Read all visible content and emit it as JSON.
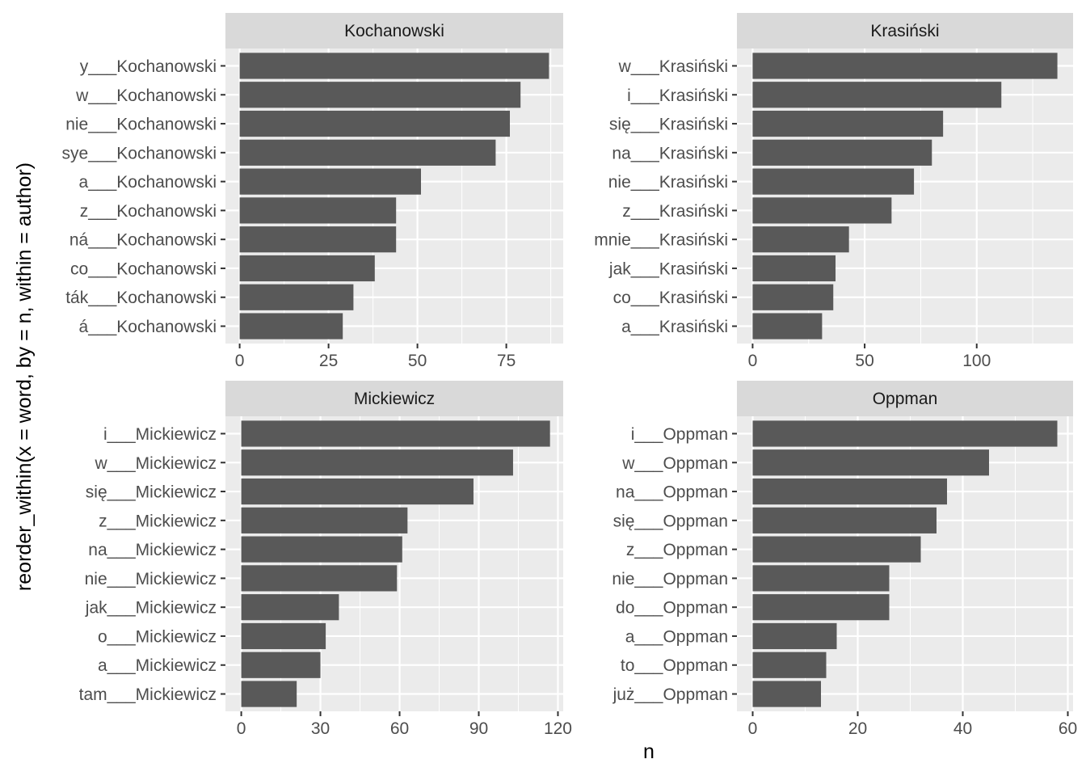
{
  "axis_titles": {
    "x": "n",
    "y": "reorder_within(x = word, by = n, within = author)"
  },
  "colors": {
    "panel_background": "#ebebeb",
    "strip_background": "#d9d9d9",
    "gridline": "#ffffff",
    "bar": "#595959",
    "tick_text": "#4d4d4d"
  },
  "chart_data": [
    {
      "type": "bar",
      "orientation": "horizontal",
      "title": "Kochanowski",
      "categories": [
        "y___Kochanowski",
        "w___Kochanowski",
        "nie___Kochanowski",
        "sye___Kochanowski",
        "a___Kochanowski",
        "z___Kochanowski",
        "ná___Kochanowski",
        "co___Kochanowski",
        "ták___Kochanowski",
        "á___Kochanowski"
      ],
      "values": [
        87,
        79,
        76,
        72,
        51,
        44,
        44,
        38,
        32,
        29
      ],
      "xlim": [
        -4,
        91
      ],
      "xticks": [
        0,
        25,
        50,
        75
      ],
      "xtick_labels": [
        "0",
        "25",
        "50",
        "75"
      ],
      "grid": true
    },
    {
      "type": "bar",
      "orientation": "horizontal",
      "title": "Krasiński",
      "categories": [
        "w___Krasiński",
        "i___Krasiński",
        "się___Krasiński",
        "na___Krasiński",
        "nie___Krasiński",
        "z___Krasiński",
        "mnie___Krasiński",
        "jak___Krasiński",
        "co___Krasiński",
        "a___Krasiński"
      ],
      "values": [
        136,
        111,
        85,
        80,
        72,
        62,
        43,
        37,
        36,
        31
      ],
      "xlim": [
        -7,
        143
      ],
      "xticks": [
        0,
        50,
        100
      ],
      "xtick_labels": [
        "0",
        "50",
        "100"
      ],
      "grid": true
    },
    {
      "type": "bar",
      "orientation": "horizontal",
      "title": "Mickiewicz",
      "categories": [
        "i___Mickiewicz",
        "w___Mickiewicz",
        "się___Mickiewicz",
        "z___Mickiewicz",
        "na___Mickiewicz",
        "nie___Mickiewicz",
        "jak___Mickiewicz",
        "o___Mickiewicz",
        "a___Mickiewicz",
        "tam___Mickiewicz"
      ],
      "values": [
        117,
        103,
        88,
        63,
        61,
        59,
        37,
        32,
        30,
        21
      ],
      "xlim": [
        -6,
        122
      ],
      "xticks": [
        0,
        30,
        60,
        90,
        120
      ],
      "xtick_labels": [
        "0",
        "30",
        "60",
        "90",
        "120"
      ],
      "grid": true
    },
    {
      "type": "bar",
      "orientation": "horizontal",
      "title": "Oppman",
      "categories": [
        "i___Oppman",
        "w___Oppman",
        "na___Oppman",
        "się___Oppman",
        "z___Oppman",
        "nie___Oppman",
        "do___Oppman",
        "a___Oppman",
        "to___Oppman",
        "już___Oppman"
      ],
      "values": [
        58,
        45,
        37,
        35,
        32,
        26,
        26,
        16,
        14,
        13
      ],
      "xlim": [
        -3,
        61
      ],
      "xticks": [
        0,
        20,
        40,
        60
      ],
      "xtick_labels": [
        "0",
        "20",
        "40",
        "60"
      ],
      "grid": true
    }
  ]
}
